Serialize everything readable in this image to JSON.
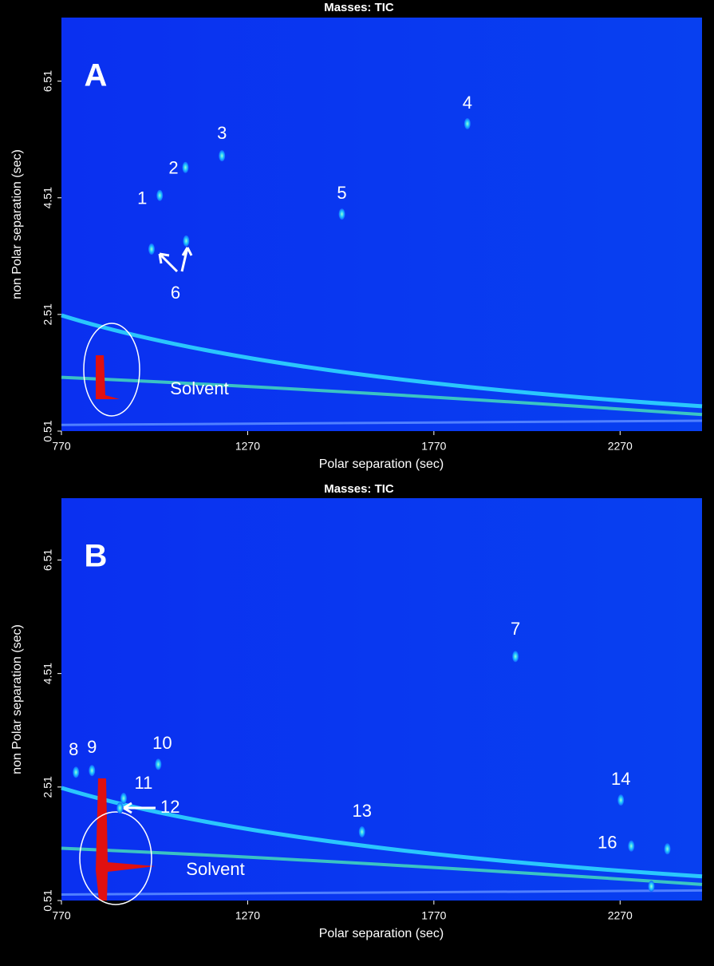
{
  "chart_data": [
    {
      "type": "scatter",
      "title": "Masses:  TIC",
      "panel_label": "A",
      "x_label": "Polar separation (sec)",
      "y_label": "non Polar separation (sec)",
      "xlim": [
        770,
        2490
      ],
      "ylim": [
        0.51,
        7.6
      ],
      "xticks": [
        770,
        1270,
        1770,
        2270
      ],
      "yticks": [
        0.51,
        2.51,
        4.51,
        6.51
      ],
      "labels": [
        "1",
        "2",
        "3",
        "4",
        "5",
        "6",
        null
      ],
      "x": [
        1034,
        1103,
        1201,
        1860,
        1523,
        1012,
        1105
      ],
      "values": [
        4.55,
        5.03,
        5.23,
        5.78,
        4.23,
        3.63,
        3.77
      ],
      "annotation": "Solvent"
    },
    {
      "type": "scatter",
      "title": "Masses:  TIC",
      "panel_label": "B",
      "x_label": "Polar separation (sec)",
      "y_label": "non Polar separation (sec)",
      "xlim": [
        770,
        2490
      ],
      "ylim": [
        0.51,
        7.6
      ],
      "xticks": [
        770,
        1270,
        1770,
        2270
      ],
      "yticks": [
        0.51,
        2.51,
        4.51,
        6.51
      ],
      "labels": [
        "7",
        "8",
        "9",
        "10",
        "11",
        "12",
        "13",
        "14",
        "16",
        null,
        null
      ],
      "x": [
        1989,
        809,
        852,
        1030,
        937,
        927,
        1577,
        2272,
        2300,
        2397,
        2354
      ],
      "values": [
        4.81,
        2.77,
        2.8,
        2.91,
        2.31,
        2.14,
        1.72,
        2.28,
        1.47,
        1.42,
        0.76
      ],
      "annotation": "Solvent"
    }
  ]
}
